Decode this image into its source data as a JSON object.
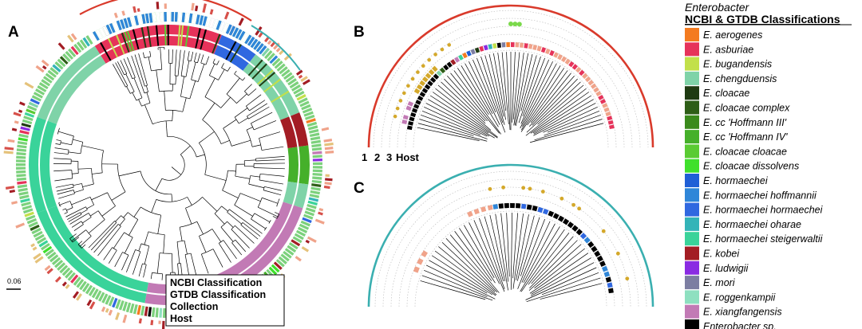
{
  "panels": {
    "a": {
      "letter": "A"
    },
    "b": {
      "letter": "B",
      "tracks": [
        "1",
        "2",
        "3",
        "Host"
      ]
    },
    "c": {
      "letter": "C"
    }
  },
  "scale": {
    "label": "0.06"
  },
  "key_box": {
    "lines": [
      "NCBI Classification",
      "GTDB Classification",
      "Collection",
      "Host"
    ]
  },
  "legend": {
    "title": "Enterobacter",
    "subtitle": "NCBI & GTDB Classifications",
    "items": [
      {
        "label": "E. aerogenes",
        "color": "#f47b20"
      },
      {
        "label": "E. asburiae",
        "color": "#e6325a"
      },
      {
        "label": "E. bugandensis",
        "color": "#c2e04a"
      },
      {
        "label": "E. chengduensis",
        "color": "#7fd3a8"
      },
      {
        "label": "E. cloacae",
        "color": "#1f3b12"
      },
      {
        "label": "E. cloacae complex",
        "color": "#2e5e17"
      },
      {
        "label": "E. cc 'Hoffmann III'",
        "color": "#3a8a1c"
      },
      {
        "label": "E. cc 'Hoffmann IV'",
        "color": "#45b02a"
      },
      {
        "label": "E. cloacae cloacae",
        "color": "#5acb33"
      },
      {
        "label": "E. cloacae dissolvens",
        "color": "#3fe02c"
      },
      {
        "label": "E. hormaechei",
        "color": "#1f5fd6"
      },
      {
        "label": "E. hormaechei hoffmannii",
        "color": "#2f86d8"
      },
      {
        "label": "E. hormaechei hormaechei",
        "color": "#3068e0"
      },
      {
        "label": "E. hormaechei oharae",
        "color": "#33b4b8"
      },
      {
        "label": "E. hormaechei steigerwaltii",
        "color": "#3ad39a"
      },
      {
        "label": "E. kobei",
        "color": "#a31d24"
      },
      {
        "label": "E. ludwigii",
        "color": "#8a2be2"
      },
      {
        "label": "E. mori",
        "color": "#7c7ea2"
      },
      {
        "label": "E. roggenkampii",
        "color": "#8ee0c0"
      },
      {
        "label": "E. xiangfangensis",
        "color": "#c27ab5"
      },
      {
        "label": "Enterobacter sp.",
        "color": "#000000"
      }
    ]
  }
}
